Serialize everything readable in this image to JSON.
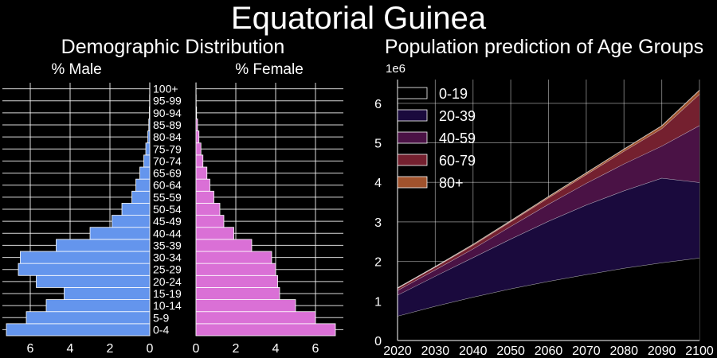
{
  "suptitle": "Equatorial Guinea",
  "colors": {
    "background": "#000000",
    "male": "#6495ed",
    "female": "#da70d6",
    "grid": "#ffffff",
    "area": [
      "#000000",
      "#1a0a3d",
      "#4a1245",
      "#74202f",
      "#a0522d"
    ]
  },
  "chart_data": [
    {
      "type": "bar",
      "orientation": "horizontal",
      "title": "Demographic Distribution",
      "male_label": "% Male",
      "female_label": "% Female",
      "categories": [
        "0-4",
        "5-9",
        "10-14",
        "15-19",
        "20-24",
        "25-29",
        "30-34",
        "35-39",
        "40-44",
        "45-49",
        "50-54",
        "55-59",
        "60-64",
        "65-69",
        "70-74",
        "75-79",
        "80-84",
        "85-89",
        "90-94",
        "95-99",
        "100+"
      ],
      "series": [
        {
          "name": "% Male",
          "values": [
            7.2,
            6.2,
            5.2,
            4.3,
            5.7,
            6.6,
            6.5,
            4.7,
            3.0,
            1.9,
            1.4,
            0.9,
            0.7,
            0.5,
            0.3,
            0.2,
            0.1,
            0.05,
            0.02,
            0.01,
            0.005
          ]
        },
        {
          "name": "% Female",
          "values": [
            7.0,
            6.0,
            5.0,
            4.2,
            4.1,
            4.0,
            3.8,
            2.8,
            1.9,
            1.4,
            1.2,
            0.9,
            0.7,
            0.55,
            0.35,
            0.25,
            0.15,
            0.08,
            0.03,
            0.01,
            0.005
          ]
        }
      ],
      "male_xticks": [
        6,
        4,
        2,
        0
      ],
      "female_xticks": [
        0,
        2,
        4,
        6
      ],
      "male_xlim": [
        7.4,
        0
      ],
      "female_xlim": [
        0,
        7.4
      ],
      "grid": true
    },
    {
      "type": "area",
      "stacked": true,
      "title": "Population prediction of Age Groups",
      "y_multiplier": "1e6",
      "x": [
        2020,
        2030,
        2040,
        2050,
        2060,
        2070,
        2080,
        2090,
        2100
      ],
      "series": [
        {
          "name": "0-19",
          "values": [
            0.62,
            0.87,
            1.1,
            1.31,
            1.5,
            1.67,
            1.83,
            1.97,
            2.09
          ]
        },
        {
          "name": "20-39",
          "values": [
            0.53,
            0.76,
            1.0,
            1.26,
            1.52,
            1.76,
            1.96,
            2.14,
            1.91
          ]
        },
        {
          "name": "40-59",
          "values": [
            0.12,
            0.16,
            0.22,
            0.32,
            0.43,
            0.55,
            0.68,
            0.81,
            1.44
          ]
        },
        {
          "name": "60-79",
          "values": [
            0.05,
            0.07,
            0.09,
            0.12,
            0.16,
            0.22,
            0.32,
            0.44,
            0.79
          ]
        },
        {
          "name": "80+",
          "values": [
            0.01,
            0.01,
            0.02,
            0.02,
            0.03,
            0.04,
            0.05,
            0.07,
            0.1
          ]
        }
      ],
      "xlim": [
        2020,
        2100
      ],
      "ylim": [
        0,
        6.6
      ],
      "yticks": [
        0,
        1,
        2,
        3,
        4,
        5,
        6
      ],
      "legend": "top-left",
      "grid": true
    }
  ]
}
